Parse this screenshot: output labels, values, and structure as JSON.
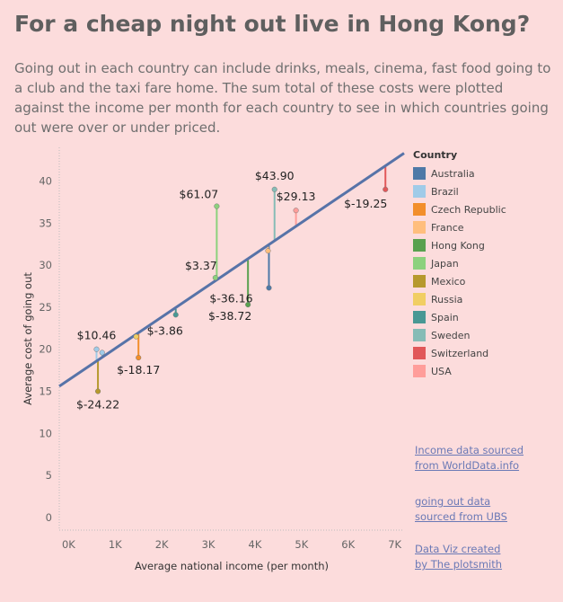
{
  "header": {
    "title": "For a cheap night out live in Hong Kong?",
    "subtitle": "Going out in each country can include drinks, meals, cinema, fast food going to a club and the taxi fare home. The sum total of these costs were plotted against the income per month for each country to see in which countries going out were over or under priced."
  },
  "legend": {
    "title": "Country"
  },
  "credits": [
    {
      "line1": "Income data sourced",
      "line2": "from WorldData.info"
    },
    {
      "line1": "going out data",
      "line2": "sourced from UBS"
    },
    {
      "line1": "Data Viz created",
      "line2": "by The plotsmith"
    }
  ],
  "chart_data": {
    "type": "scatter",
    "xlabel": "Average national income (per month)",
    "ylabel": "Average cost of going out",
    "xlim": [
      -200,
      7200
    ],
    "ylim": [
      -1.5,
      44
    ],
    "x_ticks": [
      0,
      1000,
      2000,
      3000,
      4000,
      5000,
      6000,
      7000
    ],
    "x_tick_labels": [
      "0K",
      "1K",
      "2K",
      "3K",
      "4K",
      "5K",
      "6K",
      "7K"
    ],
    "y_ticks": [
      0,
      5,
      10,
      15,
      20,
      25,
      30,
      35,
      40
    ],
    "y_tick_labels": [
      "0",
      "5",
      "10",
      "15",
      "20",
      "25",
      "30",
      "35",
      "40"
    ],
    "trend_line": {
      "x": [
        -200,
        7200
      ],
      "y": [
        15.6,
        43.3
      ],
      "color": "#5773a8"
    },
    "points": [
      {
        "country": "Australia",
        "color": "#4e79a7",
        "x": 4300,
        "y": 27.3,
        "expected": 32.3,
        "label": "$-36.16",
        "label_dx": -42,
        "label_dy": 16
      },
      {
        "country": "Brazil",
        "color": "#a0cbe8",
        "x": 720,
        "y": 19.6,
        "expected": 18.9,
        "label": "",
        "label_dx": 0,
        "label_dy": 0
      },
      {
        "country": "Czech Republic",
        "color": "#f28e2b",
        "x": 1500,
        "y": 19.0,
        "expected": 21.8,
        "label": "$-18.17",
        "label_dx": 0,
        "label_dy": 18
      },
      {
        "country": "France",
        "color": "#ffbe7d",
        "x": 4280,
        "y": 31.7,
        "expected": 32.2,
        "label": "",
        "label_dx": 0,
        "label_dy": 0
      },
      {
        "country": "Hong Kong",
        "color": "#59a14f",
        "x": 3850,
        "y": 25.3,
        "expected": 30.6,
        "label": "$-38.72",
        "label_dx": -20,
        "label_dy": 17
      },
      {
        "country": "Japan",
        "color": "#8cd17d",
        "x": 3180,
        "y": 37.0,
        "expected": 28.2,
        "label": "$61.07",
        "label_dx": -20,
        "label_dy": -9
      },
      {
        "country": "Mexico",
        "color": "#b6992d",
        "x": 630,
        "y": 15.0,
        "expected": 18.6,
        "label": "$-24.22",
        "label_dx": 0,
        "label_dy": 19
      },
      {
        "country": "Russia",
        "color": "#f1ce63",
        "x": 1450,
        "y": 21.5,
        "expected": 21.6,
        "label": "",
        "label_dx": 0,
        "label_dy": 0
      },
      {
        "country": "Spain",
        "color": "#499894",
        "x": 2300,
        "y": 24.1,
        "expected": 24.8,
        "label": "$-3.86",
        "label_dx": -12,
        "label_dy": 22
      },
      {
        "country": "Sweden",
        "color": "#86bcb6",
        "x": 4420,
        "y": 39.0,
        "expected": 32.8,
        "label": "$43.90",
        "label_dx": 0,
        "label_dy": -11
      },
      {
        "country": "Switzerland",
        "color": "#e15759",
        "x": 6800,
        "y": 39.0,
        "expected": 41.7,
        "label": "$-19.25",
        "label_dx": -22,
        "label_dy": 20
      },
      {
        "country": "USA",
        "color": "#ff9d9a",
        "x": 4880,
        "y": 36.5,
        "expected": 34.6,
        "label": "$29.13",
        "label_dx": 0,
        "label_dy": -11
      },
      {
        "country": "Japan",
        "color": "#8cd17d",
        "x": 3150,
        "y": 28.5,
        "expected": 28.1,
        "label": "$3.37",
        "label_dx": -16,
        "label_dy": -9
      },
      {
        "country": "Brazil",
        "color": "#a0cbe8",
        "x": 600,
        "y": 20.0,
        "expected": 18.5,
        "label": "$10.46",
        "label_dx": 0,
        "label_dy": -11
      }
    ],
    "legend": [
      {
        "name": "Australia",
        "color": "#4e79a7"
      },
      {
        "name": "Brazil",
        "color": "#a0cbe8"
      },
      {
        "name": "Czech Republic",
        "color": "#f28e2b"
      },
      {
        "name": "France",
        "color": "#ffbe7d"
      },
      {
        "name": "Hong Kong",
        "color": "#59a14f"
      },
      {
        "name": "Japan",
        "color": "#8cd17d"
      },
      {
        "name": "Mexico",
        "color": "#b6992d"
      },
      {
        "name": "Russia",
        "color": "#f1ce63"
      },
      {
        "name": "Spain",
        "color": "#499894"
      },
      {
        "name": "Sweden",
        "color": "#86bcb6"
      },
      {
        "name": "Switzerland",
        "color": "#e15759"
      },
      {
        "name": "USA",
        "color": "#ff9d9a"
      }
    ]
  }
}
